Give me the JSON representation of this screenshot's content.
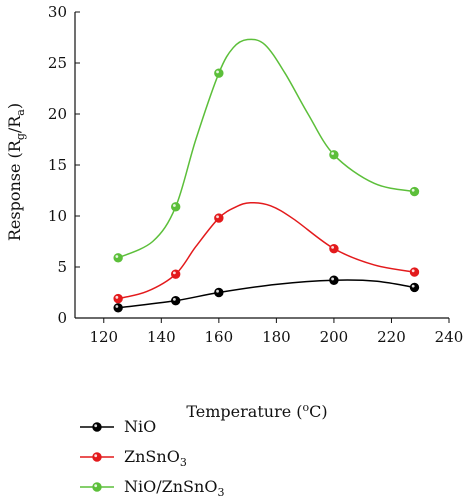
{
  "chart_data": {
    "type": "line",
    "xlabel": "Temperature (°C)",
    "xlabel_parts": {
      "main": "Temperature (",
      "sup": "o",
      "end": "C)"
    },
    "ylabel": "Response (Rg/Ra)",
    "ylabel_parts": {
      "main": "Response (R",
      "sub1": "g",
      "mid": "/R",
      "sub2": "a",
      "end": ")"
    },
    "xlim": [
      110,
      240
    ],
    "ylim": [
      0,
      30
    ],
    "xticks": [
      120,
      140,
      160,
      180,
      200,
      220,
      240
    ],
    "yticks": [
      0,
      5,
      10,
      15,
      20,
      25,
      30
    ],
    "legend_position": "bottom-left, below plot",
    "grid": false,
    "series": [
      {
        "name": "NiO",
        "name_parts": {
          "main": "NiO"
        },
        "color": "#000000",
        "marker_fill": "#ffffff",
        "x": [
          125,
          145,
          160,
          200,
          228
        ],
        "y": [
          1.0,
          1.7,
          2.5,
          3.7,
          3.0
        ],
        "curve": [
          [
            125,
            1.0
          ],
          [
            145,
            1.7
          ],
          [
            160,
            2.5
          ],
          [
            180,
            3.3
          ],
          [
            200,
            3.7
          ],
          [
            215,
            3.6
          ],
          [
            228,
            3.0
          ]
        ]
      },
      {
        "name": "ZnSnO3",
        "name_parts": {
          "main": "ZnSnO",
          "sub": "3"
        },
        "color": "#e31a1c",
        "marker_fill": "#ffffff",
        "x": [
          125,
          145,
          160,
          200,
          228
        ],
        "y": [
          1.9,
          4.3,
          9.8,
          6.8,
          4.5
        ],
        "curve": [
          [
            125,
            1.9
          ],
          [
            135,
            2.6
          ],
          [
            145,
            4.3
          ],
          [
            152,
            7.0
          ],
          [
            160,
            9.8
          ],
          [
            166,
            10.9
          ],
          [
            171,
            11.3
          ],
          [
            178,
            11.0
          ],
          [
            186,
            9.7
          ],
          [
            200,
            6.8
          ],
          [
            214,
            5.2
          ],
          [
            228,
            4.5
          ]
        ]
      },
      {
        "name": "NiO/ZnSnO3",
        "name_parts": {
          "main": "NiO/ZnSnO",
          "sub": "3"
        },
        "color": "#5cbf3a",
        "marker_fill": "#ffffff",
        "x": [
          125,
          145,
          160,
          200,
          228
        ],
        "y": [
          5.9,
          10.9,
          24.0,
          16.0,
          12.4
        ],
        "curve": [
          [
            125,
            5.9
          ],
          [
            137,
            7.5
          ],
          [
            145,
            10.9
          ],
          [
            152,
            17.5
          ],
          [
            160,
            24.0
          ],
          [
            165,
            26.5
          ],
          [
            170,
            27.3
          ],
          [
            176,
            26.8
          ],
          [
            183,
            24.0
          ],
          [
            191,
            20.0
          ],
          [
            200,
            16.0
          ],
          [
            214,
            13.2
          ],
          [
            228,
            12.4
          ]
        ]
      }
    ]
  }
}
